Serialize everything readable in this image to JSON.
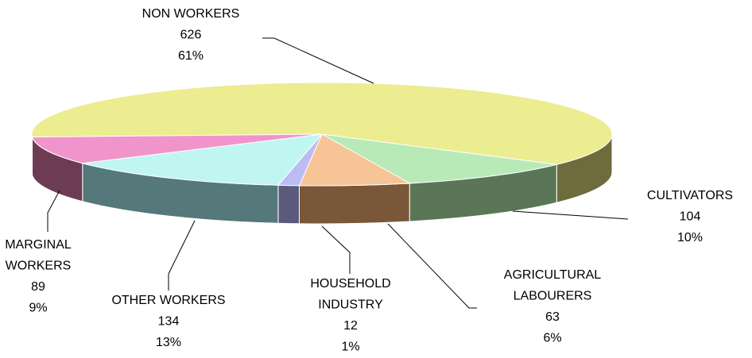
{
  "chart_data": {
    "type": "pie3d",
    "categories": [
      "NON WORKERS",
      "CULTIVATORS",
      "AGRICULTURAL LABOURERS",
      "HOUSEHOLD INDUSTRY",
      "OTHER WORKERS",
      "MARGINAL WORKERS"
    ],
    "values": [
      626,
      104,
      63,
      12,
      134,
      89
    ],
    "percent_labels": [
      "61%",
      "10%",
      "6%",
      "1%",
      "13%",
      "9%"
    ],
    "colors": [
      "#ecec90",
      "#b8eab8",
      "#f6c496",
      "#bcbcf2",
      "#bff6f2",
      "#f294cc"
    ],
    "side_colors": [
      "#6e6c3c",
      "#5a7656",
      "#7a5738",
      "#5c5a7c",
      "#55787a",
      "#6c3c52"
    ]
  }
}
